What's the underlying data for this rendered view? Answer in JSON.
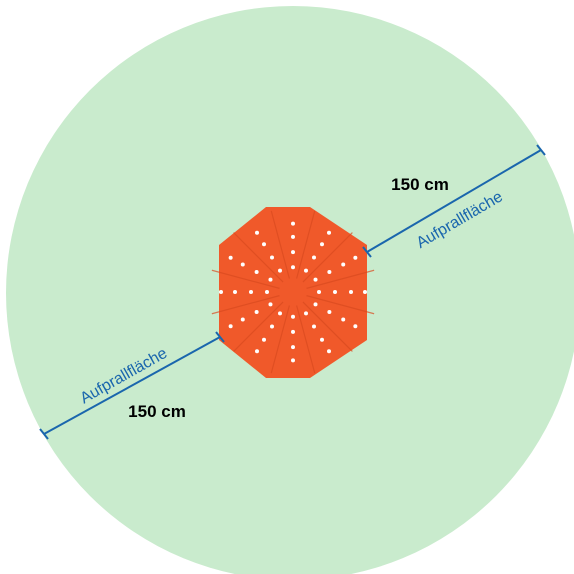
{
  "colors": {
    "impact_zone": "#c9ebcd",
    "device": "#f0592a",
    "device_edge": "#d94a1f",
    "dots": "#ffffff",
    "dimension_line": "#1a66ad",
    "text": "#000000"
  },
  "labels": {
    "zone_upper": "Aufprallfläche",
    "zone_lower": "Aufprallfläche",
    "dist_upper": "150 cm",
    "dist_lower": "150 cm"
  }
}
